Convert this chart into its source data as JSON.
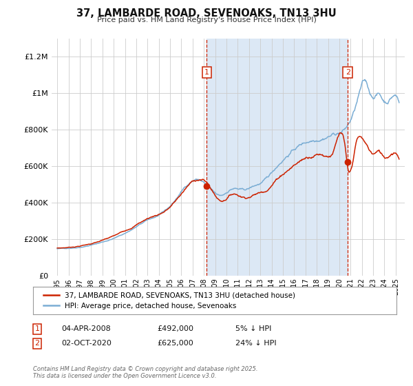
{
  "title": "37, LAMBARDE ROAD, SEVENOAKS, TN13 3HU",
  "subtitle": "Price paid vs. HM Land Registry's House Price Index (HPI)",
  "bg_color": "#ffffff",
  "plot_bg_color": "#ffffff",
  "grid_color": "#cccccc",
  "hpi_color": "#7aadd4",
  "price_color": "#cc2200",
  "sale1_date_x": 2008.25,
  "sale1_price": 492000,
  "sale2_date_x": 2020.75,
  "sale2_price": 625000,
  "shade_color": "#dce8f5",
  "annotation_box_color": "#cc2200",
  "legend_label1": "37, LAMBARDE ROAD, SEVENOAKS, TN13 3HU (detached house)",
  "legend_label2": "HPI: Average price, detached house, Sevenoaks",
  "table_row1": [
    "1",
    "04-APR-2008",
    "£492,000",
    "5% ↓ HPI"
  ],
  "table_row2": [
    "2",
    "02-OCT-2020",
    "£625,000",
    "24% ↓ HPI"
  ],
  "footnote": "Contains HM Land Registry data © Crown copyright and database right 2025.\nThis data is licensed under the Open Government Licence v3.0.",
  "ylim": [
    0,
    1300000
  ],
  "yticks": [
    0,
    200000,
    400000,
    600000,
    800000,
    1000000,
    1200000
  ],
  "ytick_labels": [
    "£0",
    "£200K",
    "£400K",
    "£600K",
    "£800K",
    "£1M",
    "£1.2M"
  ],
  "xmin": 1994.5,
  "xmax": 2025.8
}
